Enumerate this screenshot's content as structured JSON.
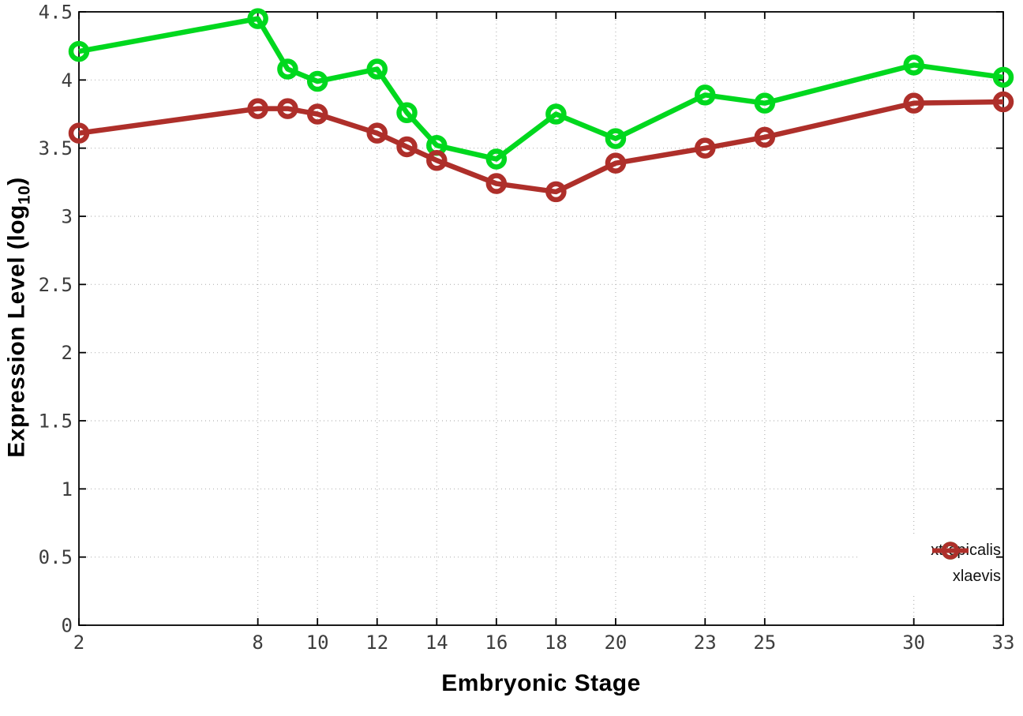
{
  "chart_data": {
    "type": "line",
    "title": "",
    "xlabel": "Embryonic Stage",
    "ylabel": "Expression Level (log10)",
    "ylabel_parts": {
      "prefix": "Expression Level (log",
      "sub": "10",
      "suffix": ")"
    },
    "x": [
      2,
      8,
      9,
      10,
      12,
      13,
      14,
      16,
      18,
      20,
      23,
      25,
      30,
      33
    ],
    "series": [
      {
        "name": "xtropicalis",
        "color": "#00d81e",
        "values": [
          4.21,
          4.45,
          4.08,
          3.99,
          4.08,
          3.76,
          3.52,
          3.42,
          3.75,
          3.57,
          3.89,
          3.83,
          4.11,
          4.02
        ]
      },
      {
        "name": "xlaevis",
        "color": "#ae2f2a",
        "values": [
          3.61,
          3.79,
          3.79,
          3.75,
          3.61,
          3.51,
          3.41,
          3.24,
          3.18,
          3.39,
          3.5,
          3.58,
          3.83,
          3.84
        ]
      }
    ],
    "xlim": [
      2,
      33
    ],
    "ylim": [
      0,
      4.5
    ],
    "x_ticks": [
      2,
      8,
      10,
      12,
      14,
      16,
      18,
      20,
      23,
      25,
      30,
      33
    ],
    "x_tick_labels": [
      "2",
      "8",
      "10",
      "12",
      "14",
      "16",
      "18",
      "20",
      "23",
      "25",
      "30",
      "33"
    ],
    "y_ticks": [
      0,
      0.5,
      1,
      1.5,
      2,
      2.5,
      3,
      3.5,
      4,
      4.5
    ],
    "y_tick_labels": [
      "0",
      "0.5",
      "1",
      "1.5",
      "2",
      "2.5",
      "3",
      "3.5",
      "4",
      "4.5"
    ],
    "grid": true,
    "marker": "open-circle",
    "legend_position": "bottom-right",
    "colors": {
      "border": "#000000",
      "grid": "#b5b5b5",
      "tick_text": "#3d3d3d",
      "background": "#ffffff"
    }
  }
}
